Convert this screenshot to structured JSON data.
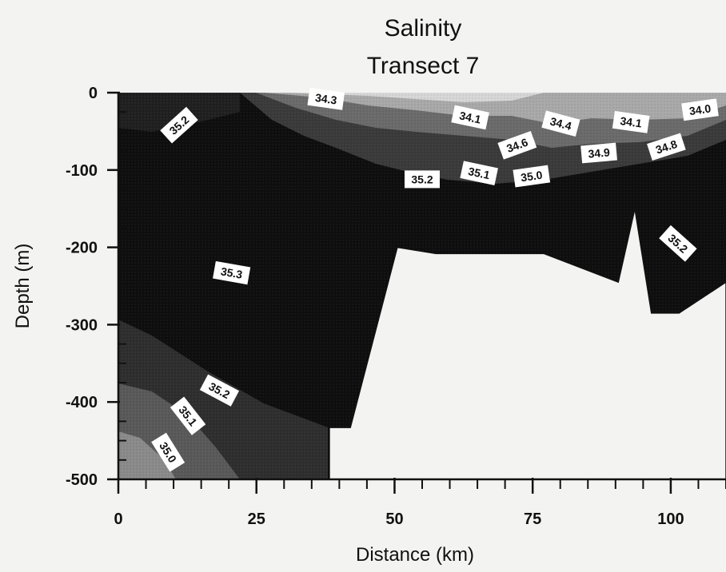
{
  "chart_data": {
    "type": "contour",
    "title": "Salinity",
    "subtitle": "Transect 7",
    "xlabel": "Distance (km)",
    "ylabel": "Depth (m)",
    "xlim": [
      0,
      110
    ],
    "ylim": [
      -500,
      0
    ],
    "x_ticks": [
      "0",
      "25",
      "50",
      "75",
      "100"
    ],
    "y_ticks": [
      "0",
      "-100",
      "-200",
      "-300",
      "-400",
      "-500"
    ],
    "bottom_profile": [
      {
        "x": 38.2,
        "y": -500
      },
      {
        "x": 38.2,
        "y": -433
      },
      {
        "x": 42.0,
        "y": -433
      },
      {
        "x": 50.5,
        "y": -200
      },
      {
        "x": 57.5,
        "y": -208
      },
      {
        "x": 77.0,
        "y": -208
      },
      {
        "x": 90.5,
        "y": -245
      },
      {
        "x": 93.5,
        "y": -150
      },
      {
        "x": 96.5,
        "y": -285
      },
      {
        "x": 101.5,
        "y": -285
      },
      {
        "x": 110,
        "y": -245
      },
      {
        "x": 110,
        "y": -500
      }
    ],
    "contour_labels": [
      {
        "text": "34.3",
        "x": 37.6,
        "y": -8,
        "angle": 8
      },
      {
        "text": "34.1",
        "x": 63.7,
        "y": -32,
        "angle": 12
      },
      {
        "text": "34.4",
        "x": 80.1,
        "y": -40,
        "angle": 15
      },
      {
        "text": "34.1",
        "x": 92.8,
        "y": -38,
        "angle": 8
      },
      {
        "text": "34.0",
        "x": 105.3,
        "y": -22,
        "angle": -8
      },
      {
        "text": "35.2",
        "x": 11.0,
        "y": -42,
        "angle": -42
      },
      {
        "text": "34.6",
        "x": 72.2,
        "y": -68,
        "angle": -20
      },
      {
        "text": "34.9",
        "x": 87.0,
        "y": -78,
        "angle": -5
      },
      {
        "text": "34.8",
        "x": 99.2,
        "y": -70,
        "angle": -18
      },
      {
        "text": "35.2",
        "x": 55.0,
        "y": -112,
        "angle": 0
      },
      {
        "text": "35.1",
        "x": 65.3,
        "y": -104,
        "angle": 12
      },
      {
        "text": "35.0",
        "x": 74.8,
        "y": -108,
        "angle": -8
      },
      {
        "text": "35.2",
        "x": 101.3,
        "y": -195,
        "angle": 42
      },
      {
        "text": "35.3",
        "x": 20.5,
        "y": -233,
        "angle": 10
      },
      {
        "text": "35.2",
        "x": 18.3,
        "y": -385,
        "angle": 28
      },
      {
        "text": "35.1",
        "x": 12.6,
        "y": -418,
        "angle": 52
      },
      {
        "text": "35.0",
        "x": 9.0,
        "y": -465,
        "angle": 58
      }
    ]
  }
}
